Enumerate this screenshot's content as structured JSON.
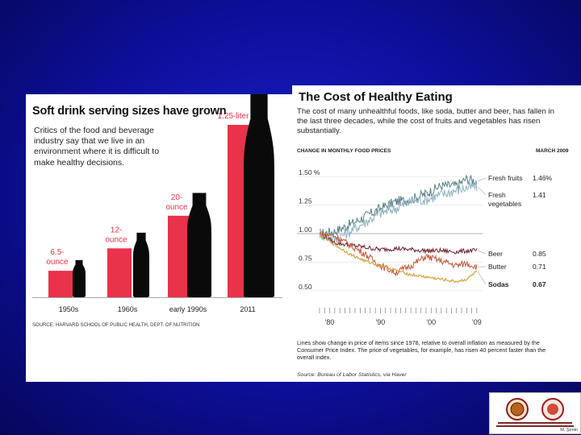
{
  "chart_data": [
    {
      "type": "bar",
      "title": "Soft drink serving sizes have grown",
      "subtitle": "Critics of the food and beverage industry say that we live in an environment where it is difficult to make healthy decisions.",
      "categories": [
        "1950s",
        "1960s",
        "early 1990s",
        "2011"
      ],
      "values": [
        6.5,
        12,
        20,
        42.3
      ],
      "bar_labels": [
        "6.5-\nounce",
        "12-\nounce",
        "20-\nounce",
        "1.25-liter"
      ],
      "source": "SOURCE: HARVARD SCHOOL OF PUBLIC HEALTH, DEPT. OF NUTRITION",
      "bar_color": "#e8334a"
    },
    {
      "type": "line",
      "title": "The Cost of Healthy Eating",
      "subtitle": "The cost of many unhealthful foods, like soda, butter and beer, has fallen in the last three decades, while the cost of fruits and vegetables has risen substantially.",
      "panel_label": "CHANGE IN MONTHLY FOOD PRICES",
      "date_label": "MARCH 2009",
      "y_ticks": [
        "1.50 %",
        "1.25",
        "1.00",
        "0.75",
        "0.50"
      ],
      "x_ticks": [
        "'80",
        "'90",
        "'00",
        "'09"
      ],
      "ylim": [
        0.45,
        1.55
      ],
      "xlim": [
        1978,
        2009.5
      ],
      "series": [
        {
          "name": "Fresh fruits",
          "value": "1.46%",
          "color": "#5a7f86",
          "x": [
            1978,
            1981,
            1984,
            1987,
            1990,
            1993,
            1996,
            1999,
            2002,
            2005,
            2007,
            2009
          ],
          "y": [
            1.0,
            1.02,
            1.08,
            1.15,
            1.22,
            1.28,
            1.3,
            1.35,
            1.42,
            1.42,
            1.48,
            1.46
          ]
        },
        {
          "name": "Fresh vegetables",
          "value": "1.41",
          "color": "#8fb3c0",
          "x": [
            1978,
            1981,
            1984,
            1987,
            1990,
            1993,
            1996,
            1999,
            2002,
            2005,
            2007,
            2009
          ],
          "y": [
            1.0,
            0.95,
            1.02,
            1.1,
            1.18,
            1.22,
            1.28,
            1.3,
            1.34,
            1.38,
            1.4,
            1.41
          ]
        },
        {
          "name": "Beer",
          "value": "0.85",
          "color": "#6a2030",
          "x": [
            1978,
            1981,
            1984,
            1987,
            1990,
            1993,
            1996,
            1999,
            2002,
            2005,
            2007,
            2009
          ],
          "y": [
            1.0,
            0.92,
            0.9,
            0.88,
            0.86,
            0.87,
            0.86,
            0.85,
            0.85,
            0.84,
            0.85,
            0.85
          ]
        },
        {
          "name": "Butter",
          "value": "0.71",
          "color": "#c05a3a",
          "x": [
            1978,
            1981,
            1984,
            1987,
            1990,
            1993,
            1996,
            1999,
            2002,
            2005,
            2007,
            2009
          ],
          "y": [
            1.0,
            0.98,
            0.9,
            0.82,
            0.72,
            0.66,
            0.72,
            0.8,
            0.76,
            0.72,
            0.74,
            0.71
          ]
        },
        {
          "name": "Sodas",
          "value": "0.67",
          "color": "#d4a340",
          "x": [
            1978,
            1981,
            1984,
            1987,
            1990,
            1993,
            1996,
            1999,
            2002,
            2005,
            2007,
            2009
          ],
          "y": [
            1.0,
            0.9,
            0.82,
            0.76,
            0.72,
            0.68,
            0.64,
            0.62,
            0.6,
            0.58,
            0.6,
            0.67
          ]
        }
      ],
      "note": "Lines show change in price of items since 1978, relative to overall inflation as measured by the Consumer Price Index. The price of vegetables, for example, has risen 40 percent faster than the overall index.",
      "source": "Source: Bureau of Labor Statistics, via Haver"
    }
  ],
  "logo": {
    "caption": "M. Şenin"
  }
}
